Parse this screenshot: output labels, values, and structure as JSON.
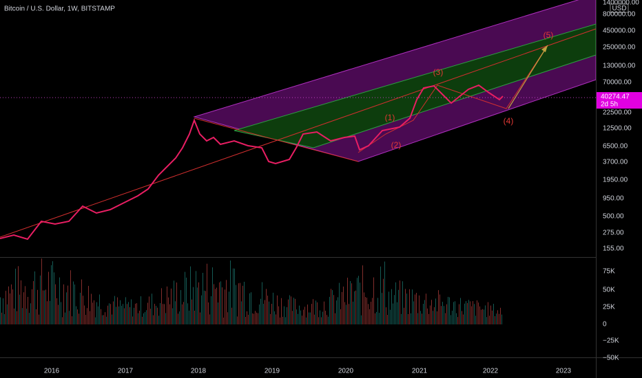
{
  "header": {
    "title": "Bitcoin / U.S. Dollar, 1W, BITSTAMP"
  },
  "price_axis": {
    "currency": "USD",
    "labels": [
      "1400000.00",
      "800000.00",
      "450000.00",
      "250000.00",
      "130000.00",
      "70000.00",
      "22500.00",
      "12500.00",
      "6500.00",
      "3700.00",
      "1950.00",
      "950.00",
      "500.00",
      "275.00",
      "155.00"
    ]
  },
  "current_price": {
    "price": "40274.47",
    "countdown": "2d 5h"
  },
  "volume_axis": {
    "labels": [
      "75K",
      "50K",
      "25K",
      "0",
      "−25K",
      "−50K"
    ]
  },
  "time_axis": {
    "labels": [
      "2016",
      "2017",
      "2018",
      "2019",
      "2020",
      "2021",
      "2022",
      "2023"
    ]
  },
  "annotations": {
    "wave_5": "(5)",
    "wave_3": "(3)",
    "wave_1": "(1)",
    "wave_2": "(2)",
    "wave_4": "(4)"
  }
}
